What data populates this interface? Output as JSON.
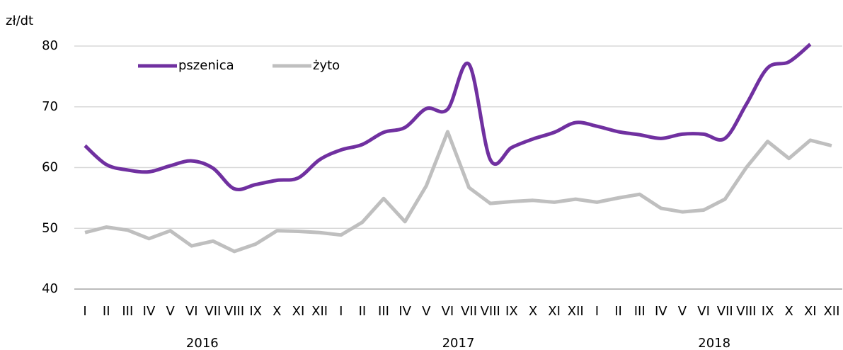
{
  "chart_data": {
    "type": "line",
    "y_label": "zł/dt",
    "categories": [
      "I",
      "II",
      "III",
      "IV",
      "V",
      "VI",
      "VII",
      "VIII",
      "IX",
      "X",
      "XI",
      "XII",
      "I",
      "II",
      "III",
      "IV",
      "V",
      "VI",
      "VII",
      "VIII",
      "IX",
      "X",
      "XI",
      "XII",
      "I",
      "II",
      "III",
      "IV",
      "V",
      "VI",
      "VII",
      "VIII",
      "IX",
      "X",
      "XI",
      "XII"
    ],
    "x_groups": [
      "2016",
      "2017",
      "2018"
    ],
    "series": [
      {
        "name": "pszenica",
        "color": "#7030a0",
        "smooth": true,
        "values": [
          63.6,
          60.5,
          59.6,
          59.3,
          60.3,
          61.1,
          59.9,
          56.5,
          57.2,
          57.9,
          58.3,
          61.3,
          62.9,
          63.8,
          65.8,
          66.6,
          69.7,
          69.6,
          77.0,
          61.3,
          63.3,
          64.7,
          65.8,
          67.4,
          66.8,
          65.9,
          65.4,
          64.8,
          65.5,
          65.5,
          64.8,
          70.4,
          76.4,
          77.4,
          80.3,
          null
        ]
      },
      {
        "name": "żyto",
        "color": "#bfbfbf",
        "smooth": false,
        "values": [
          49.3,
          50.2,
          49.7,
          48.3,
          49.6,
          47.1,
          47.9,
          46.2,
          47.4,
          49.6,
          49.5,
          49.3,
          48.9,
          51.0,
          54.9,
          51.1,
          57.0,
          65.9,
          56.7,
          54.1,
          54.4,
          54.6,
          54.3,
          54.8,
          54.3,
          55.0,
          55.6,
          53.3,
          52.7,
          53.0,
          54.8,
          60.0,
          64.3,
          61.5,
          64.5,
          63.6
        ]
      }
    ],
    "ylim": [
      40,
      80
    ],
    "yticks": [
      40,
      50,
      60,
      70,
      80
    ],
    "grid": true,
    "legend": "top"
  }
}
